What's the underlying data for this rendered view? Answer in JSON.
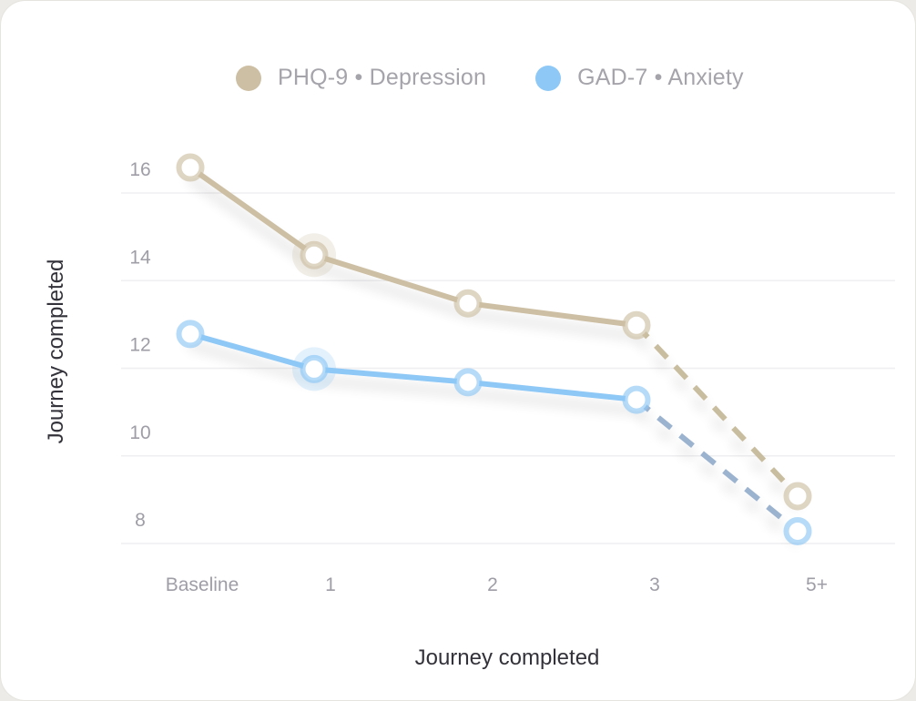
{
  "chart_data": {
    "type": "line",
    "categories": [
      "Baseline",
      "1",
      "2",
      "3",
      "5+"
    ],
    "xlabel": "Journey completed",
    "ylabel": "Journey completed",
    "ylim": [
      8,
      16
    ],
    "yticks": [
      16,
      14,
      12,
      10,
      8
    ],
    "grid": true,
    "legend_placement": "top",
    "series": [
      {
        "name": "PHQ-9 • Depression",
        "color": "#cdbfa3",
        "values": [
          16.0,
          14.0,
          12.9,
          12.4,
          8.5
        ],
        "dashed_last_segment": true
      },
      {
        "name": "GAD-7 • Anxiety",
        "color": "#8ec8f6",
        "values": [
          12.2,
          11.4,
          11.1,
          10.7,
          7.7
        ],
        "dashed_last_segment": true
      }
    ],
    "highlight_index": 1
  }
}
